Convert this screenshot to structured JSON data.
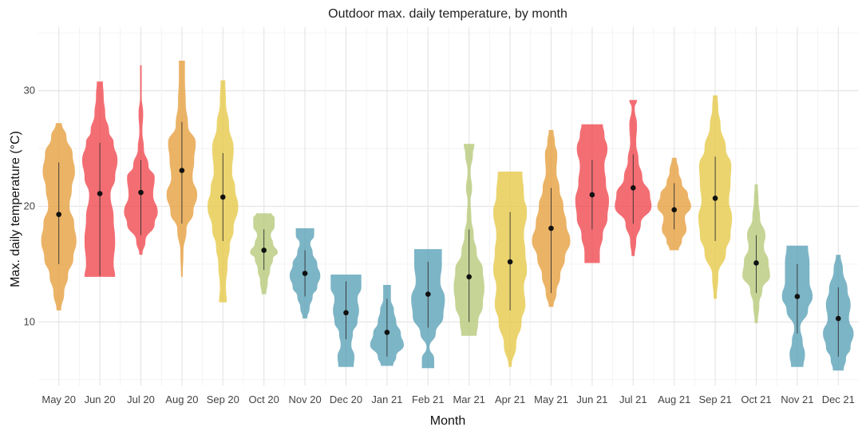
{
  "chart_data": {
    "type": "violin",
    "title": "Outdoor max. daily temperature, by month",
    "xlabel": "Month",
    "ylabel": "Max. daily temperature (°C)",
    "ylim": [
      4.5,
      35.5
    ],
    "yticks": [
      10,
      20,
      30
    ],
    "grid": true,
    "legend": "none",
    "colors": {
      "cold": "#5ba3b8",
      "cool": "#b8c97a",
      "mild": "#e6c94a",
      "warm": "#e6a040",
      "hot": "#f04a50"
    },
    "series": [
      {
        "month": "May 20",
        "color_key": "warm",
        "min": 11.0,
        "max": 27.2,
        "median": 19.3,
        "whisker": [
          15.0,
          23.8
        ],
        "profile": [
          [
            11.0,
            3
          ],
          [
            12.5,
            7
          ],
          [
            14,
            12
          ],
          [
            15.5,
            19
          ],
          [
            17,
            23
          ],
          [
            18.5,
            20
          ],
          [
            20,
            14
          ],
          [
            21.5,
            17
          ],
          [
            23,
            21
          ],
          [
            24.5,
            18
          ],
          [
            26,
            10
          ],
          [
            27.2,
            4
          ]
        ]
      },
      {
        "month": "Jun 20",
        "color_key": "hot",
        "min": 13.9,
        "max": 30.8,
        "median": 21.1,
        "whisker": [
          14.0,
          25.5
        ],
        "profile": [
          [
            13.9,
            20
          ],
          [
            15,
            18
          ],
          [
            17,
            20
          ],
          [
            19,
            18
          ],
          [
            21,
            14
          ],
          [
            22.5,
            20
          ],
          [
            24,
            23
          ],
          [
            25.5,
            18
          ],
          [
            26.5,
            12
          ],
          [
            28,
            7
          ],
          [
            29.5,
            5
          ],
          [
            30.8,
            4
          ]
        ]
      },
      {
        "month": "Jul 20",
        "color_key": "hot",
        "min": 15.8,
        "max": 32.2,
        "median": 21.2,
        "whisker": [
          17.5,
          24.0
        ],
        "profile": [
          [
            15.8,
            2
          ],
          [
            17,
            6
          ],
          [
            18.5,
            18
          ],
          [
            19.5,
            22
          ],
          [
            21,
            16
          ],
          [
            22.5,
            18
          ],
          [
            23.5,
            10
          ],
          [
            25,
            4
          ],
          [
            26.5,
            2
          ],
          [
            28,
            3
          ],
          [
            29.5,
            1
          ],
          [
            32.2,
            1
          ]
        ]
      },
      {
        "month": "Aug 20",
        "color_key": "warm",
        "min": 13.9,
        "max": 32.6,
        "median": 23.1,
        "whisker": [
          18.5,
          27.3
        ],
        "profile": [
          [
            13.9,
            1
          ],
          [
            16,
            2
          ],
          [
            18,
            6
          ],
          [
            19.5,
            15
          ],
          [
            21,
            20
          ],
          [
            22.5,
            14
          ],
          [
            24,
            16
          ],
          [
            25.5,
            18
          ],
          [
            27,
            8
          ],
          [
            29,
            5
          ],
          [
            31,
            4
          ],
          [
            32.6,
            4
          ]
        ]
      },
      {
        "month": "Sep 20",
        "color_key": "mild",
        "min": 11.7,
        "max": 30.9,
        "median": 20.8,
        "whisker": [
          17.0,
          24.6
        ],
        "profile": [
          [
            11.7,
            5
          ],
          [
            13,
            4
          ],
          [
            15,
            6
          ],
          [
            16.5,
            9
          ],
          [
            18,
            14
          ],
          [
            20,
            20
          ],
          [
            21.5,
            16
          ],
          [
            23,
            12
          ],
          [
            25,
            14
          ],
          [
            27,
            8
          ],
          [
            29,
            4
          ],
          [
            30.9,
            3
          ]
        ]
      },
      {
        "month": "Oct 20",
        "color_key": "cool",
        "min": 12.4,
        "max": 19.4,
        "median": 16.2,
        "whisker": [
          14.5,
          18.0
        ],
        "profile": [
          [
            12.4,
            3
          ],
          [
            13.5,
            5
          ],
          [
            14.5,
            8
          ],
          [
            15.5,
            12
          ],
          [
            16,
            18
          ],
          [
            16.8,
            12
          ],
          [
            17.5,
            9
          ],
          [
            18.3,
            14
          ],
          [
            19,
            14
          ],
          [
            19.4,
            10
          ]
        ]
      },
      {
        "month": "Nov 20",
        "color_key": "cold",
        "min": 10.3,
        "max": 18.1,
        "median": 14.2,
        "whisker": [
          12.2,
          16.2
        ],
        "profile": [
          [
            10.3,
            3
          ],
          [
            11.2,
            6
          ],
          [
            12.2,
            10
          ],
          [
            13,
            16
          ],
          [
            14,
            20
          ],
          [
            15,
            16
          ],
          [
            16,
            10
          ],
          [
            16.8,
            7
          ],
          [
            17.5,
            12
          ],
          [
            18.1,
            12
          ]
        ]
      },
      {
        "month": "Dec 20",
        "color_key": "cold",
        "min": 6.1,
        "max": 14.1,
        "median": 10.8,
        "whisker": [
          8.5,
          13.5
        ],
        "profile": [
          [
            6.1,
            10
          ],
          [
            7,
            11
          ],
          [
            8,
            7
          ],
          [
            9,
            9
          ],
          [
            10,
            15
          ],
          [
            11,
            17
          ],
          [
            12,
            15
          ],
          [
            13,
            20
          ],
          [
            14.1,
            20
          ]
        ]
      },
      {
        "month": "Jan 21",
        "color_key": "cold",
        "min": 6.2,
        "max": 13.2,
        "median": 9.1,
        "whisker": [
          7.0,
          12.0
        ],
        "profile": [
          [
            6.2,
            8
          ],
          [
            7,
            12
          ],
          [
            8,
            22
          ],
          [
            9,
            18
          ],
          [
            10,
            12
          ],
          [
            11,
            9
          ],
          [
            12,
            5
          ],
          [
            13.2,
            5
          ]
        ]
      },
      {
        "month": "Feb 21",
        "color_key": "cold",
        "min": 6.0,
        "max": 16.3,
        "median": 12.4,
        "whisker": [
          9.5,
          15.2
        ],
        "profile": [
          [
            6.0,
            8
          ],
          [
            6.8,
            8
          ],
          [
            7.8,
            2
          ],
          [
            9,
            10
          ],
          [
            10.5,
            20
          ],
          [
            12,
            22
          ],
          [
            13.5,
            16
          ],
          [
            15,
            18
          ],
          [
            16.3,
            18
          ]
        ]
      },
      {
        "month": "Mar 21",
        "color_key": "cool",
        "min": 8.8,
        "max": 25.4,
        "median": 13.9,
        "whisker": [
          10.0,
          18.0
        ],
        "profile": [
          [
            8.8,
            10
          ],
          [
            10,
            12
          ],
          [
            11.5,
            18
          ],
          [
            13,
            20
          ],
          [
            14.5,
            18
          ],
          [
            16,
            10
          ],
          [
            17.5,
            6
          ],
          [
            19,
            3
          ],
          [
            20.5,
            2
          ],
          [
            21.5,
            4
          ],
          [
            23,
            2
          ],
          [
            24.5,
            5
          ],
          [
            25.4,
            7
          ]
        ]
      },
      {
        "month": "Apr 21",
        "color_key": "mild",
        "min": 6.1,
        "max": 23.0,
        "median": 15.2,
        "whisker": [
          11.0,
          19.5
        ],
        "profile": [
          [
            6.1,
            2
          ],
          [
            8,
            8
          ],
          [
            10,
            15
          ],
          [
            11.5,
            20
          ],
          [
            13,
            18
          ],
          [
            14.5,
            22
          ],
          [
            16,
            20
          ],
          [
            17.5,
            18
          ],
          [
            19.5,
            22
          ],
          [
            21,
            18
          ],
          [
            23,
            16
          ]
        ]
      },
      {
        "month": "May 21",
        "color_key": "warm",
        "min": 11.3,
        "max": 26.6,
        "median": 18.1,
        "whisker": [
          12.5,
          21.6
        ],
        "profile": [
          [
            11.3,
            3
          ],
          [
            12.5,
            7
          ],
          [
            14,
            12
          ],
          [
            15.5,
            18
          ],
          [
            17,
            25
          ],
          [
            18.5,
            20
          ],
          [
            20,
            16
          ],
          [
            21.5,
            11
          ],
          [
            23,
            7
          ],
          [
            24.5,
            8
          ],
          [
            25.5,
            5
          ],
          [
            26.6,
            3
          ]
        ]
      },
      {
        "month": "Jun 21",
        "color_key": "hot",
        "min": 15.1,
        "max": 27.1,
        "median": 21.0,
        "whisker": [
          18.0,
          24.0
        ],
        "profile": [
          [
            15.1,
            10
          ],
          [
            16,
            10
          ],
          [
            17.5,
            14
          ],
          [
            19,
            20
          ],
          [
            20.5,
            22
          ],
          [
            22,
            18
          ],
          [
            23.5,
            16
          ],
          [
            25,
            20
          ],
          [
            26.2,
            16
          ],
          [
            27.1,
            14
          ]
        ]
      },
      {
        "month": "Jul 21",
        "color_key": "hot",
        "min": 15.7,
        "max": 29.2,
        "median": 21.6,
        "whisker": [
          18.5,
          24.5
        ],
        "profile": [
          [
            15.7,
            2
          ],
          [
            17,
            4
          ],
          [
            18.5,
            10
          ],
          [
            20,
            24
          ],
          [
            21,
            22
          ],
          [
            22.5,
            12
          ],
          [
            24,
            7
          ],
          [
            25.5,
            4
          ],
          [
            27,
            5
          ],
          [
            28.5,
            2
          ],
          [
            29.2,
            5
          ]
        ]
      },
      {
        "month": "Aug 21",
        "color_key": "warm",
        "min": 16.2,
        "max": 24.2,
        "median": 19.7,
        "whisker": [
          18.0,
          22.0
        ],
        "profile": [
          [
            16.2,
            6
          ],
          [
            17,
            10
          ],
          [
            18,
            16
          ],
          [
            19,
            14
          ],
          [
            20,
            22
          ],
          [
            21,
            18
          ],
          [
            22,
            10
          ],
          [
            23,
            6
          ],
          [
            24.2,
            3
          ]
        ]
      },
      {
        "month": "Sep 21",
        "color_key": "mild",
        "min": 12.0,
        "max": 29.6,
        "median": 20.7,
        "whisker": [
          17.0,
          24.3
        ],
        "profile": [
          [
            12.0,
            2
          ],
          [
            14,
            4
          ],
          [
            16,
            14
          ],
          [
            17.5,
            20
          ],
          [
            19,
            22
          ],
          [
            20.5,
            18
          ],
          [
            22,
            20
          ],
          [
            23.5,
            21
          ],
          [
            25,
            14
          ],
          [
            27,
            7
          ],
          [
            28.5,
            4
          ],
          [
            29.6,
            3
          ]
        ]
      },
      {
        "month": "Oct 21",
        "color_key": "cool",
        "min": 9.9,
        "max": 21.9,
        "median": 15.1,
        "whisker": [
          12.5,
          17.5
        ],
        "profile": [
          [
            9.9,
            2
          ],
          [
            11.5,
            4
          ],
          [
            12.8,
            8
          ],
          [
            14,
            18
          ],
          [
            15.2,
            16
          ],
          [
            16.5,
            10
          ],
          [
            17.5,
            12
          ],
          [
            19,
            5
          ],
          [
            20.5,
            3
          ],
          [
            21.9,
            2
          ]
        ]
      },
      {
        "month": "Nov 21",
        "color_key": "cold",
        "min": 6.1,
        "max": 16.6,
        "median": 12.2,
        "whisker": [
          9.0,
          15.0
        ],
        "profile": [
          [
            6.1,
            8
          ],
          [
            7.2,
            10
          ],
          [
            8.3,
            7
          ],
          [
            9.5,
            4
          ],
          [
            11,
            14
          ],
          [
            12.2,
            20
          ],
          [
            13.5,
            16
          ],
          [
            15,
            16
          ],
          [
            16.6,
            14
          ]
        ]
      },
      {
        "month": "Dec 21",
        "color_key": "cold",
        "min": 5.8,
        "max": 15.8,
        "median": 10.3,
        "whisker": [
          7.0,
          13.0
        ],
        "profile": [
          [
            5.8,
            7
          ],
          [
            6.8,
            10
          ],
          [
            7.8,
            16
          ],
          [
            9,
            20
          ],
          [
            10.3,
            14
          ],
          [
            11.5,
            16
          ],
          [
            12.8,
            12
          ],
          [
            14.5,
            6
          ],
          [
            15.8,
            3
          ]
        ]
      }
    ]
  }
}
